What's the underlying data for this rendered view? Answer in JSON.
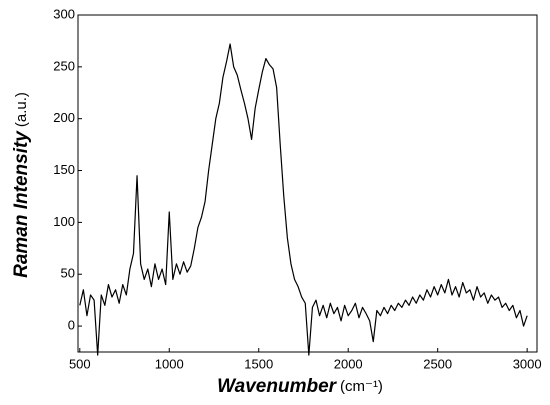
{
  "chart_data": {
    "type": "line",
    "ylabel": "Raman Intensity",
    "ylabel_unit": "(a.u.)",
    "xlabel": "Wavenumber",
    "xlabel_unit": "(cm⁻¹)",
    "x": [
      500,
      520,
      540,
      560,
      580,
      600,
      620,
      640,
      660,
      680,
      700,
      720,
      740,
      760,
      780,
      800,
      820,
      840,
      860,
      880,
      900,
      920,
      940,
      960,
      980,
      1000,
      1020,
      1040,
      1060,
      1080,
      1100,
      1120,
      1140,
      1160,
      1180,
      1200,
      1220,
      1240,
      1260,
      1280,
      1300,
      1320,
      1340,
      1360,
      1380,
      1400,
      1420,
      1440,
      1460,
      1480,
      1500,
      1520,
      1540,
      1560,
      1580,
      1600,
      1620,
      1640,
      1660,
      1680,
      1700,
      1720,
      1740,
      1760,
      1780,
      1800,
      1820,
      1840,
      1860,
      1880,
      1900,
      1920,
      1940,
      1960,
      1980,
      2000,
      2020,
      2040,
      2060,
      2080,
      2100,
      2120,
      2140,
      2160,
      2180,
      2200,
      2220,
      2240,
      2260,
      2280,
      2300,
      2320,
      2340,
      2360,
      2380,
      2400,
      2420,
      2440,
      2460,
      2480,
      2500,
      2520,
      2540,
      2560,
      2580,
      2600,
      2620,
      2640,
      2660,
      2680,
      2700,
      2720,
      2740,
      2760,
      2780,
      2800,
      2820,
      2840,
      2860,
      2880,
      2900,
      2920,
      2940,
      2960,
      2980,
      3000
    ],
    "values": [
      20,
      35,
      10,
      30,
      25,
      -28,
      30,
      20,
      40,
      28,
      35,
      22,
      40,
      30,
      55,
      70,
      145,
      60,
      45,
      55,
      38,
      60,
      45,
      55,
      40,
      110,
      45,
      60,
      50,
      62,
      52,
      58,
      75,
      95,
      105,
      120,
      150,
      175,
      200,
      215,
      240,
      255,
      272,
      250,
      242,
      228,
      215,
      200,
      180,
      210,
      228,
      245,
      258,
      252,
      248,
      230,
      175,
      125,
      85,
      60,
      45,
      38,
      28,
      22,
      -28,
      18,
      25,
      10,
      20,
      8,
      22,
      12,
      18,
      5,
      20,
      10,
      15,
      22,
      8,
      18,
      12,
      5,
      -15,
      15,
      10,
      18,
      12,
      20,
      15,
      22,
      18,
      25,
      20,
      28,
      22,
      30,
      25,
      35,
      28,
      38,
      30,
      40,
      32,
      45,
      30,
      38,
      28,
      42,
      32,
      35,
      25,
      38,
      28,
      32,
      22,
      30,
      25,
      28,
      18,
      22,
      15,
      20,
      8,
      15,
      0,
      10
    ],
    "color": "#000000",
    "xlim": [
      490,
      3055
    ],
    "ylim": [
      -25,
      300
    ],
    "xticks": [
      500,
      1000,
      1500,
      2000,
      2500,
      3000
    ],
    "yticks": [
      0,
      50,
      100,
      150,
      200,
      250,
      300
    ]
  }
}
